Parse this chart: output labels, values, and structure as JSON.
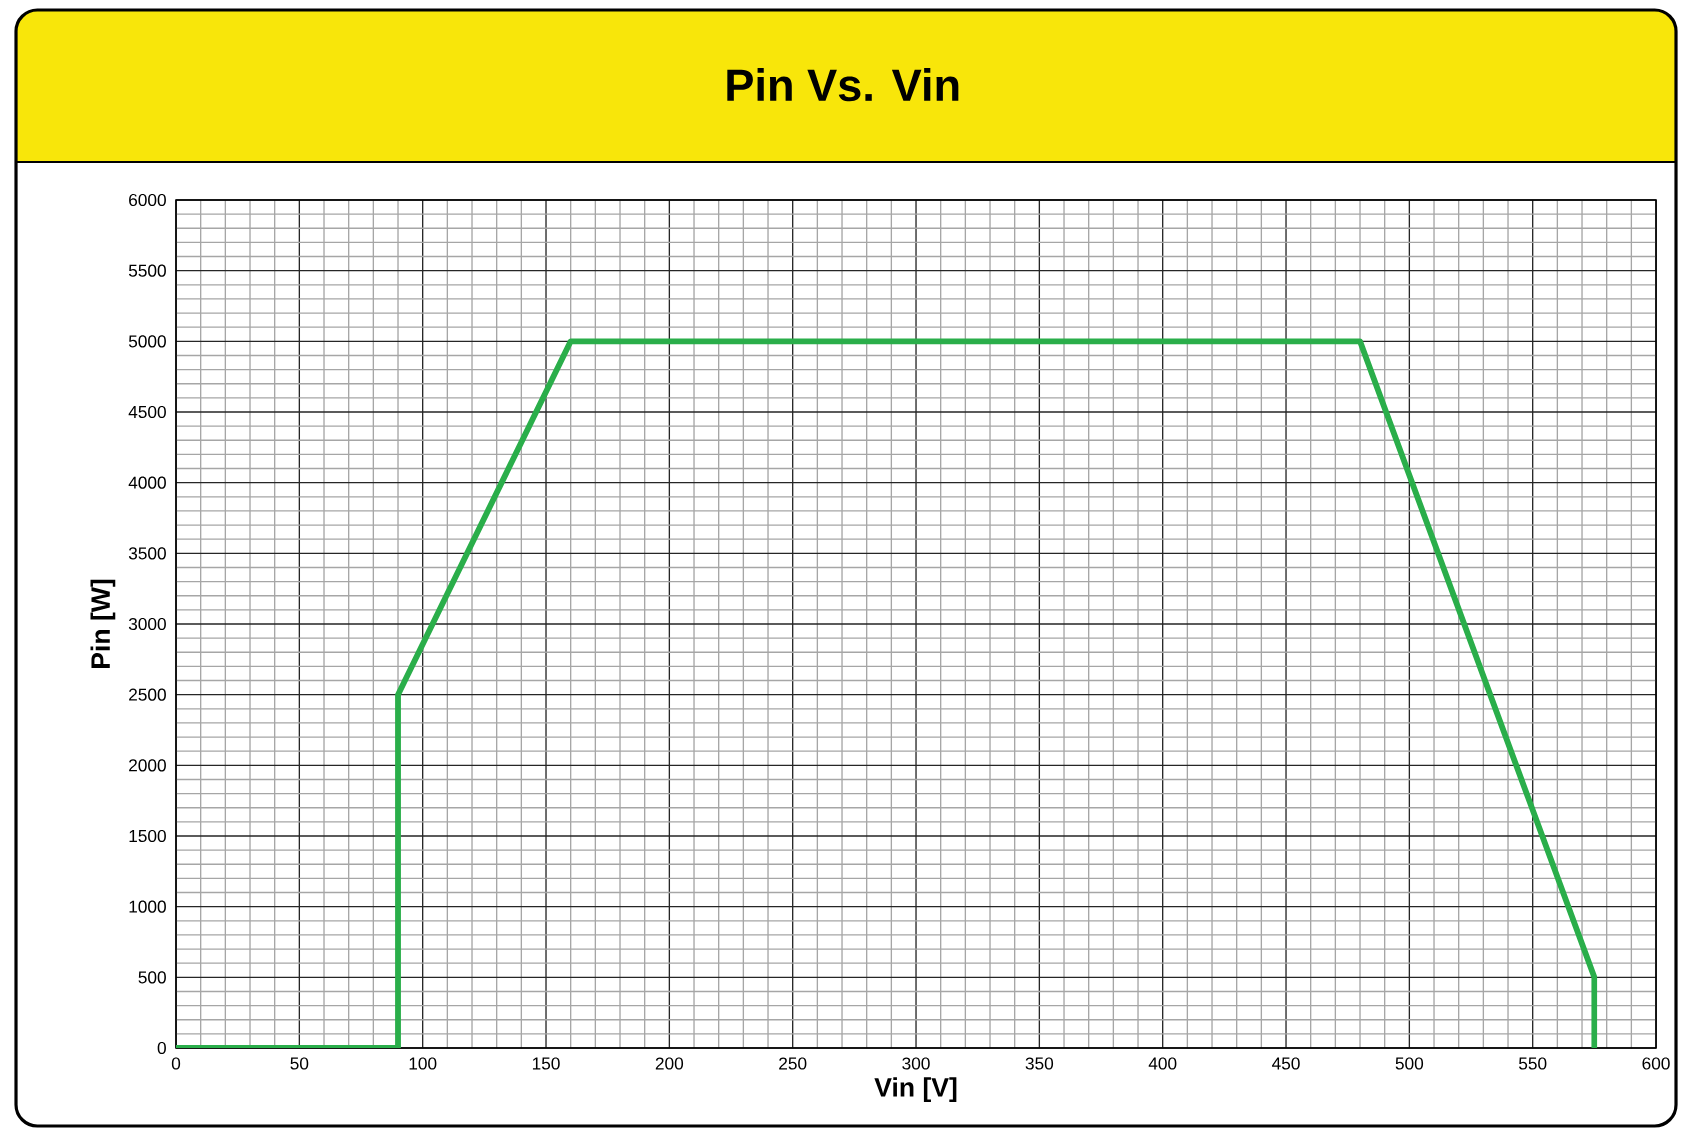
{
  "chart_data": {
    "type": "line",
    "title": "Pin Vs. Vin",
    "xlabel": "Vin [V]",
    "ylabel": "Pin [W]",
    "x": [
      0,
      90,
      90,
      160,
      480,
      575,
      575
    ],
    "series": [
      {
        "color": "#2aae4a",
        "values": [
          0,
          0,
          2500,
          5000,
          5000,
          500,
          0
        ]
      }
    ],
    "xlim": [
      0,
      600
    ],
    "ylim": [
      0,
      6000
    ],
    "xticks": [
      0,
      50,
      100,
      150,
      200,
      250,
      300,
      350,
      400,
      450,
      500,
      550,
      600
    ],
    "yticks": [
      0,
      500,
      1000,
      1500,
      2000,
      2500,
      3000,
      3500,
      4000,
      4500,
      5000,
      5500,
      6000
    ],
    "grid": true,
    "marker": "none",
    "line_style": "solid"
  }
}
